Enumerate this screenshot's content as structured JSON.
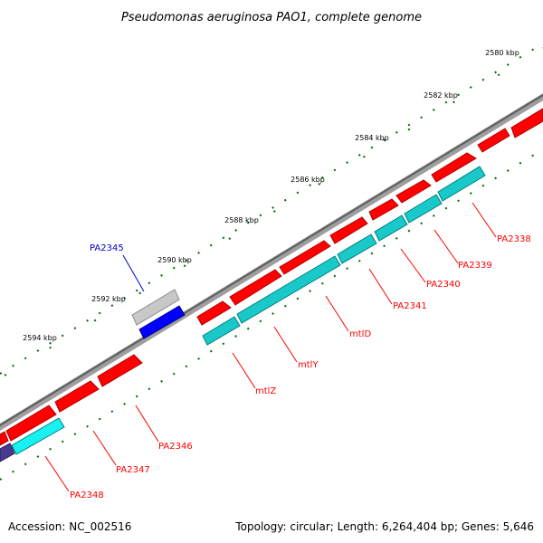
{
  "title": "Pseudomonas aeruginosa PAO1, complete genome",
  "footer": {
    "accession": "Accession: NC_002516",
    "topology": "Topology: circular; Length: 6,264,404 bp; Genes: 5,646"
  },
  "colors": {
    "backbone": "#808080",
    "forward_gene": "#ff0000",
    "reverse_gene": "#00c8c8",
    "other_gene": "#c0c0c0",
    "other_gene2": "#0000ff",
    "label_red": "#ff0000",
    "label_blue": "#0000cc",
    "tick": "#006400"
  },
  "ticks": [
    {
      "label": "2580 kbp"
    },
    {
      "label": "2582 kbp"
    },
    {
      "label": "2584 kbp"
    },
    {
      "label": "2586 kbp"
    },
    {
      "label": "2588 kbp"
    },
    {
      "label": "2590 kbp"
    },
    {
      "label": "2592 kbp"
    },
    {
      "label": "2594 kbp"
    }
  ],
  "genes": [
    {
      "name": "PA2338",
      "track": "forward"
    },
    {
      "name": "PA2339",
      "track": "forward"
    },
    {
      "name": "PA2340",
      "track": "forward"
    },
    {
      "name": "PA2341",
      "track": "forward"
    },
    {
      "name": "mtlD",
      "track": "forward"
    },
    {
      "name": "mtlY",
      "track": "forward"
    },
    {
      "name": "mtlZ",
      "track": "forward"
    },
    {
      "name": "PA2345",
      "track": "outer"
    },
    {
      "name": "PA2346",
      "track": "forward"
    },
    {
      "name": "PA2347",
      "track": "forward"
    },
    {
      "name": "PA2348",
      "track": "forward"
    }
  ]
}
